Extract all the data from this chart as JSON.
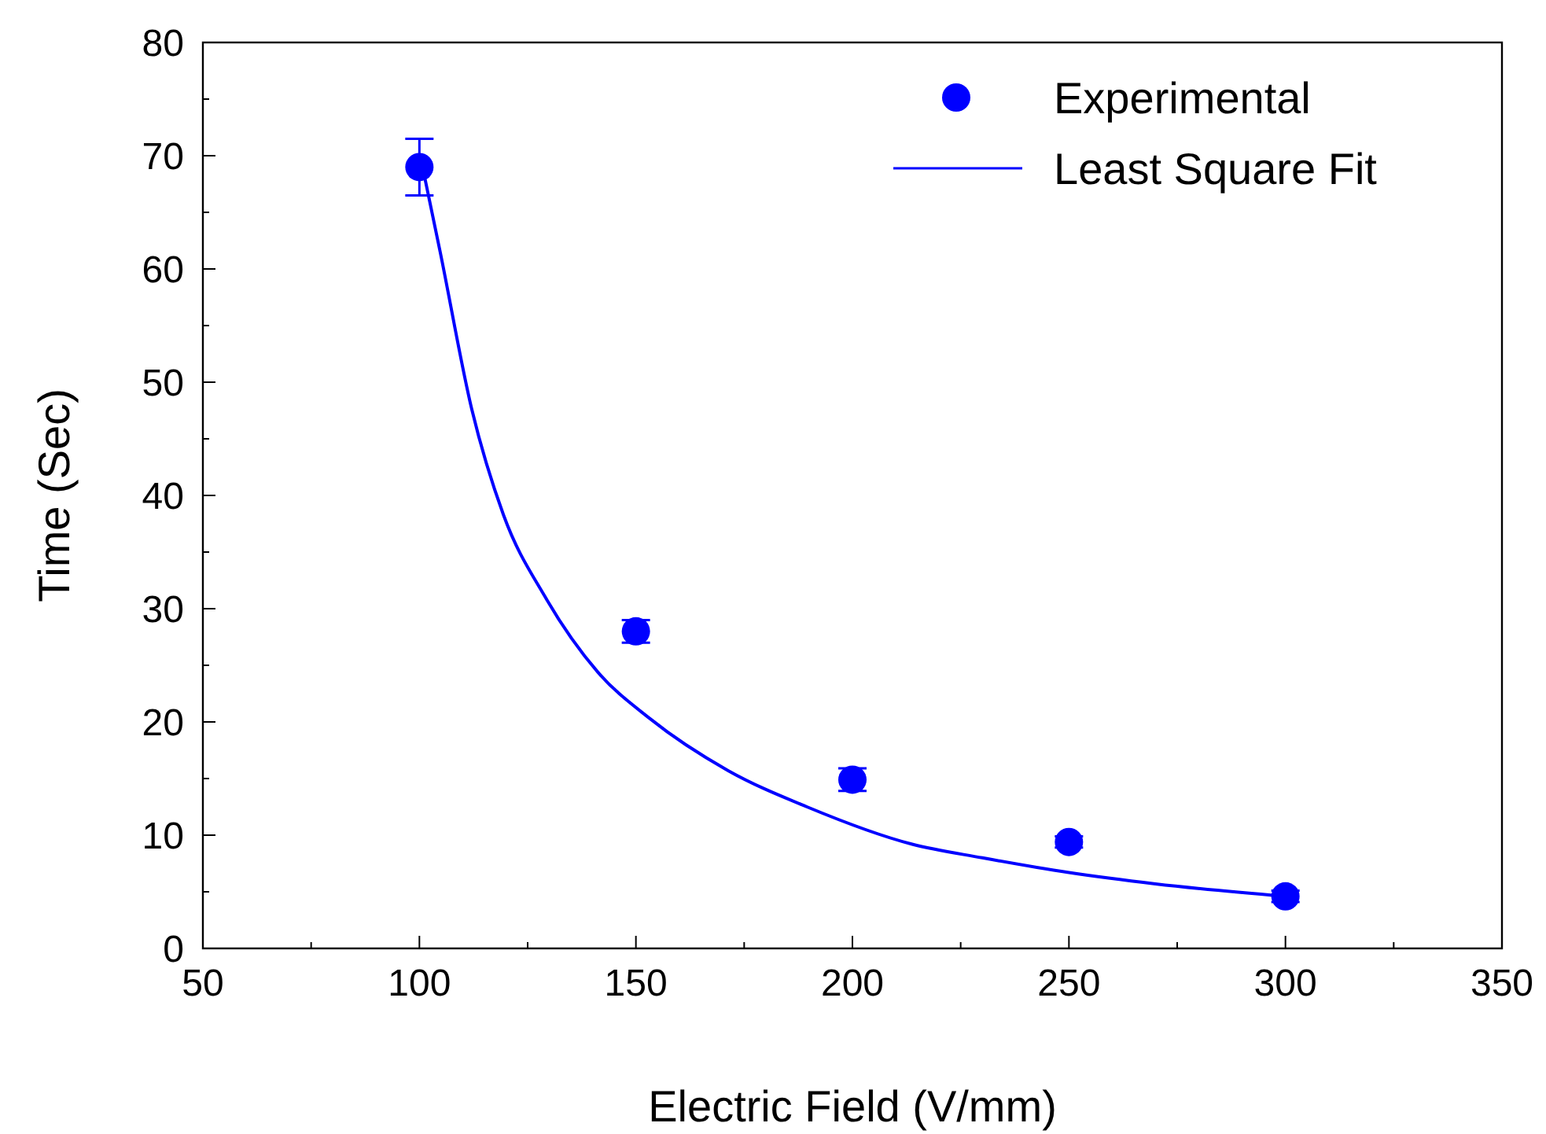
{
  "chart_data": {
    "type": "scatter",
    "xlabel": "Electric Field (V/mm)",
    "ylabel": "Time (Sec)",
    "xlim": [
      50,
      350
    ],
    "xticks": [
      50,
      100,
      150,
      200,
      250,
      300,
      350
    ],
    "ylim": [
      0,
      80
    ],
    "yticks": [
      0,
      10,
      20,
      30,
      40,
      50,
      60,
      70,
      80
    ],
    "grid": false,
    "legend": "top right",
    "series": [
      {
        "name": "Experimental",
        "color": "#0000ff",
        "marker": "circle",
        "x": [
          100,
          150,
          200,
          250,
          300
        ],
        "values": [
          69,
          28,
          14.9,
          9.4,
          4.6
        ],
        "errors": [
          2.5,
          1,
          1,
          0.5,
          0.5
        ]
      },
      {
        "name": "Least Square Fit",
        "type": "line",
        "color": "#0000ff",
        "line_style": "solid",
        "marker": "none",
        "x": [
          101,
          104.8,
          112.1,
          119.4,
          129.1,
          141.2,
          153.2,
          171.3,
          189.5,
          213.8,
          230,
          250,
          270,
          300
        ],
        "values": [
          68.5,
          61.5,
          47.6,
          38.3,
          31,
          24.4,
          20.3,
          15.7,
          12.5,
          9.2,
          8.0,
          6.7,
          5.7,
          4.6
        ]
      }
    ]
  }
}
